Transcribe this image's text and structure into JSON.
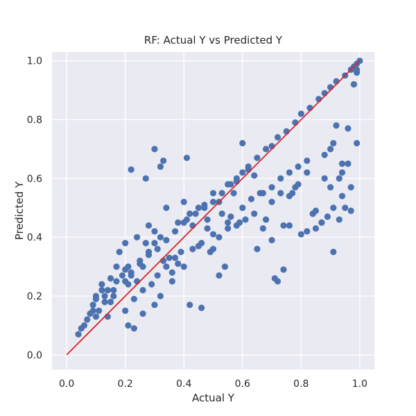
{
  "chart_data": {
    "type": "scatter",
    "title": "RF: Actual Y vs Predicted Y",
    "xlabel": "Actual Y",
    "ylabel": "Predicted Y",
    "xlim": [
      -0.05,
      1.05
    ],
    "ylim": [
      -0.05,
      1.03
    ],
    "xticks": [
      "0.0",
      "0.2",
      "0.4",
      "0.6",
      "0.8",
      "1.0"
    ],
    "yticks": [
      "0.0",
      "0.2",
      "0.4",
      "0.6",
      "0.8",
      "1.0"
    ],
    "grid": true,
    "legend": "none",
    "colors": {
      "background": "#EAEAF2",
      "grid": "#FFFFFF",
      "points": "#4C72B0",
      "reference_line": "#D62728"
    },
    "reference_line": {
      "x": [
        0.0,
        1.0
      ],
      "y": [
        0.0,
        1.0
      ]
    },
    "series": [
      {
        "x": [
          0.04,
          0.06,
          0.07,
          0.08,
          0.09,
          0.1,
          0.1,
          0.11,
          0.12,
          0.13,
          0.14,
          0.14,
          0.15,
          0.16,
          0.17,
          0.18,
          0.2,
          0.21,
          0.22,
          0.24,
          0.26,
          0.28,
          0.3,
          0.32,
          0.2,
          0.22,
          0.25,
          0.28,
          0.3,
          0.32,
          0.35,
          0.38,
          0.4,
          0.42,
          0.45,
          0.48,
          0.5,
          0.52,
          0.55,
          0.58,
          0.6,
          0.62,
          0.65,
          0.68,
          0.7,
          0.72,
          0.75,
          0.78,
          0.8,
          0.83,
          0.86,
          0.88,
          0.9,
          0.92,
          0.95,
          0.97,
          0.98,
          0.99,
          1.0,
          0.21,
          0.24,
          0.27,
          0.3,
          0.33,
          0.34,
          0.36,
          0.39,
          0.41,
          0.43,
          0.45,
          0.47,
          0.5,
          0.53,
          0.55,
          0.57,
          0.6,
          0.63,
          0.66,
          0.7,
          0.73,
          0.76,
          0.79,
          0.82,
          0.85,
          0.88,
          0.91,
          0.94,
          0.96,
          0.99,
          0.1,
          0.12,
          0.15,
          0.17,
          0.19,
          0.2,
          0.23,
          0.26,
          0.29,
          0.31,
          0.34,
          0.37,
          0.4,
          0.43,
          0.46,
          0.49,
          0.52,
          0.55,
          0.58,
          0.61,
          0.64,
          0.67,
          0.7,
          0.73,
          0.76,
          0.79,
          0.82,
          0.85,
          0.88,
          0.91,
          0.94,
          0.97,
          0.05,
          0.09,
          0.13,
          0.16,
          0.2,
          0.22,
          0.25,
          0.28,
          0.31,
          0.34,
          0.37,
          0.4,
          0.44,
          0.47,
          0.5,
          0.53,
          0.56,
          0.59,
          0.62,
          0.65,
          0.68,
          0.71,
          0.74,
          0.77,
          0.8,
          0.84,
          0.87,
          0.9,
          0.93,
          0.96,
          0.99,
          0.21,
          0.23,
          0.26,
          0.3,
          0.32,
          0.27,
          0.33,
          0.38,
          0.36,
          0.42,
          0.46,
          0.41,
          0.48,
          0.5,
          0.52,
          0.54,
          0.56,
          0.58,
          0.6,
          0.64,
          0.67,
          0.7,
          0.72,
          0.74,
          0.76,
          0.78,
          0.82,
          0.84,
          0.87,
          0.89,
          0.91,
          0.93,
          0.95,
          0.97,
          0.9,
          0.92,
          0.94,
          0.98,
          0.99
        ],
        "y": [
          0.07,
          0.1,
          0.12,
          0.14,
          0.17,
          0.19,
          0.13,
          0.15,
          0.24,
          0.18,
          0.22,
          0.13,
          0.26,
          0.2,
          0.3,
          0.35,
          0.38,
          0.24,
          0.63,
          0.4,
          0.3,
          0.44,
          0.7,
          0.64,
          0.25,
          0.28,
          0.32,
          0.35,
          0.38,
          0.4,
          0.33,
          0.45,
          0.52,
          0.48,
          0.5,
          0.43,
          0.55,
          0.52,
          0.58,
          0.6,
          0.62,
          0.64,
          0.67,
          0.7,
          0.71,
          0.74,
          0.76,
          0.79,
          0.82,
          0.84,
          0.87,
          0.89,
          0.91,
          0.93,
          0.95,
          0.97,
          0.98,
          0.99,
          1.0,
          0.3,
          0.25,
          0.38,
          0.42,
          0.32,
          0.5,
          0.28,
          0.35,
          0.46,
          0.44,
          0.37,
          0.51,
          0.41,
          0.48,
          0.45,
          0.55,
          0.5,
          0.53,
          0.55,
          0.57,
          0.6,
          0.62,
          0.64,
          0.66,
          0.43,
          0.68,
          0.72,
          0.62,
          0.77,
          0.96,
          0.2,
          0.22,
          0.18,
          0.25,
          0.27,
          0.15,
          0.19,
          0.22,
          0.24,
          0.27,
          0.3,
          0.33,
          0.3,
          0.36,
          0.38,
          0.35,
          0.4,
          0.43,
          0.44,
          0.46,
          0.48,
          0.43,
          0.52,
          0.55,
          0.54,
          0.58,
          0.62,
          0.49,
          0.6,
          0.5,
          0.54,
          0.57,
          0.09,
          0.15,
          0.2,
          0.22,
          0.29,
          0.27,
          0.31,
          0.34,
          0.36,
          0.39,
          0.42,
          0.45,
          0.48,
          0.5,
          0.52,
          0.55,
          0.58,
          0.45,
          0.63,
          0.36,
          0.46,
          0.26,
          0.44,
          0.55,
          0.41,
          0.48,
          0.45,
          0.57,
          0.6,
          0.65,
          0.72,
          0.1,
          0.09,
          0.14,
          0.17,
          0.2,
          0.6,
          0.66,
          0.31,
          0.25,
          0.17,
          0.16,
          0.67,
          0.46,
          0.36,
          0.27,
          0.3,
          0.47,
          0.59,
          0.72,
          0.61,
          0.55,
          0.39,
          0.25,
          0.29,
          0.44,
          0.57,
          0.42,
          0.48,
          0.45,
          0.47,
          0.35,
          0.46,
          0.5,
          0.49,
          0.7,
          0.78,
          0.65,
          0.92,
          0.97
        ]
      }
    ]
  }
}
